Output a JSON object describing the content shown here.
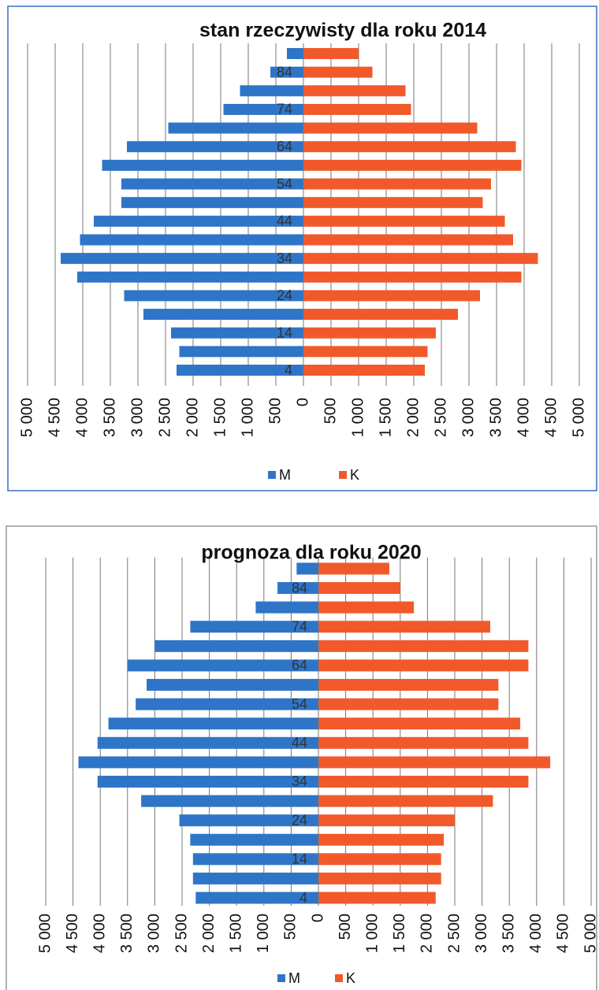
{
  "chart_data": [
    {
      "type": "bar",
      "horizontal": true,
      "title": "stan rzeczywisty dla roku 2014",
      "categories": [
        "4",
        null,
        "14",
        null,
        "24",
        null,
        "34",
        null,
        "44",
        null,
        "54",
        null,
        "64",
        null,
        "74",
        null,
        "84",
        null
      ],
      "series": [
        {
          "name": "M",
          "color": "#2e75c8",
          "values": [
            -2300,
            -2250,
            -2400,
            -2900,
            -3250,
            -4100,
            -4400,
            -4050,
            -3800,
            -3300,
            -3300,
            -3650,
            -3200,
            -2450,
            -1450,
            -1150,
            -600,
            -300
          ]
        },
        {
          "name": "K",
          "color": "#f2592a",
          "values": [
            2200,
            2250,
            2400,
            2800,
            3200,
            3950,
            4250,
            3800,
            3650,
            3250,
            3400,
            3950,
            3850,
            3150,
            1950,
            1850,
            1250,
            1000
          ]
        }
      ],
      "xlim": [
        -5000,
        5000
      ],
      "xticks": [
        {
          "value": -5000,
          "label": "5 000"
        },
        {
          "value": -4500,
          "label": "4 500"
        },
        {
          "value": -4000,
          "label": "4 000"
        },
        {
          "value": -3500,
          "label": "3 500"
        },
        {
          "value": -3000,
          "label": "3 000"
        },
        {
          "value": -2500,
          "label": "2 500"
        },
        {
          "value": -2000,
          "label": "2 000"
        },
        {
          "value": -1500,
          "label": "1 500"
        },
        {
          "value": -1000,
          "label": "1 000"
        },
        {
          "value": -500,
          "label": "500"
        },
        0,
        500,
        {
          "value": 1000,
          "label": "1 000"
        },
        {
          "value": 1500,
          "label": "1 500"
        },
        {
          "value": 2000,
          "label": "2 000"
        },
        {
          "value": 2500,
          "label": "2 500"
        },
        {
          "value": 3000,
          "label": "3 000"
        },
        {
          "value": 3500,
          "label": "3 500"
        },
        {
          "value": 4000,
          "label": "4 000"
        },
        {
          "value": 4500,
          "label": "4 500"
        },
        {
          "value": 5000,
          "label": "5 000"
        }
      ],
      "grid": true,
      "legend": "bottom"
    },
    {
      "type": "bar",
      "horizontal": true,
      "title": "prognoza dla roku 2020",
      "categories": [
        "4",
        null,
        "14",
        null,
        "24",
        null,
        "34",
        null,
        "44",
        null,
        "54",
        null,
        "64",
        null,
        "74",
        null,
        "84",
        null
      ],
      "series": [
        {
          "name": "M",
          "color": "#2e75c8",
          "values": [
            -2250,
            -2300,
            -2300,
            -2350,
            -2550,
            -3250,
            -4050,
            -4400,
            -4050,
            -3850,
            -3350,
            -3150,
            -3500,
            -3000,
            -2350,
            -1150,
            -750,
            -400
          ]
        },
        {
          "name": "K",
          "color": "#f2592a",
          "values": [
            2150,
            2250,
            2250,
            2300,
            2500,
            3200,
            3850,
            4250,
            3850,
            3700,
            3300,
            3300,
            3850,
            3850,
            3150,
            1750,
            1500,
            1300
          ]
        }
      ],
      "xlim": [
        -5000,
        5000
      ],
      "xticks": [
        {
          "value": -5000,
          "label": "5 000"
        },
        {
          "value": -4500,
          "label": "4 500"
        },
        {
          "value": -4000,
          "label": "4 000"
        },
        {
          "value": -3500,
          "label": "3 500"
        },
        {
          "value": -3000,
          "label": "3 000"
        },
        {
          "value": -2500,
          "label": "2 500"
        },
        {
          "value": -2000,
          "label": "2 000"
        },
        {
          "value": -1500,
          "label": "1 500"
        },
        {
          "value": -1000,
          "label": "1 000"
        },
        {
          "value": -500,
          "label": "500"
        },
        0,
        500,
        {
          "value": 1000,
          "label": "1 000"
        },
        {
          "value": 1500,
          "label": "1 500"
        },
        {
          "value": 2000,
          "label": "2 000"
        },
        {
          "value": 2500,
          "label": "2 500"
        },
        {
          "value": 3000,
          "label": "3 000"
        },
        {
          "value": 3500,
          "label": "3 500"
        },
        {
          "value": 4000,
          "label": "4 000"
        },
        {
          "value": 4500,
          "label": "4 500"
        },
        {
          "value": 5000,
          "label": "5 000"
        }
      ],
      "grid": true,
      "legend": "bottom"
    }
  ]
}
